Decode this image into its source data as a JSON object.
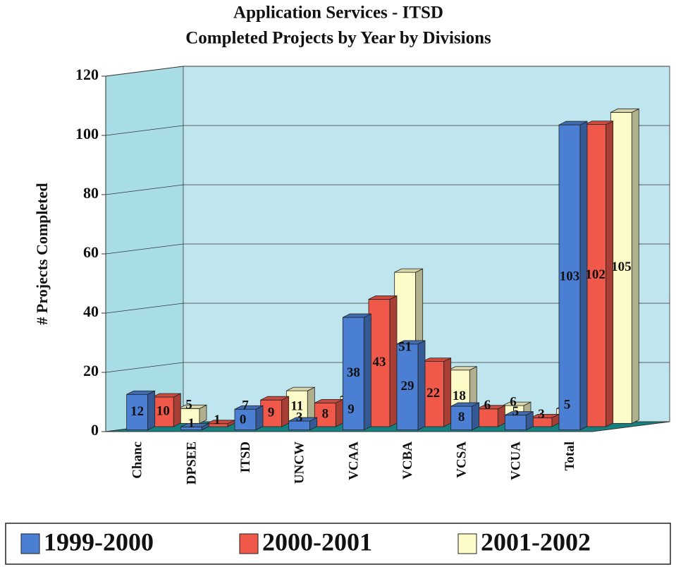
{
  "chart_data": {
    "type": "bar3d",
    "title": "Application Services - ITSD",
    "subtitle": "Completed Projects by Year by Divisions",
    "y_label": "# Projects Completed",
    "categories": [
      "Chanc",
      "DPSEE",
      "ITSD",
      "UNCW",
      "VCAA",
      "VCBA",
      "VCSA",
      "VCUA",
      "Total"
    ],
    "series": [
      {
        "name": "1999-2000",
        "color": "#4a7fd4",
        "values": [
          12,
          1,
          7,
          3,
          38,
          29,
          8,
          5,
          103
        ]
      },
      {
        "name": "2000-2001",
        "color": "#f0584a",
        "values": [
          10,
          1,
          9,
          8,
          43,
          22,
          6,
          3,
          102
        ]
      },
      {
        "name": "2001-2002",
        "color": "#fdfbc8",
        "values": [
          5,
          0,
          11,
          9,
          51,
          18,
          6,
          5,
          105
        ]
      }
    ],
    "ylim": [
      0,
      120
    ],
    "yticks": [
      0,
      20,
      40,
      60,
      80,
      100,
      120
    ],
    "grid": true,
    "legend": "bottom"
  }
}
